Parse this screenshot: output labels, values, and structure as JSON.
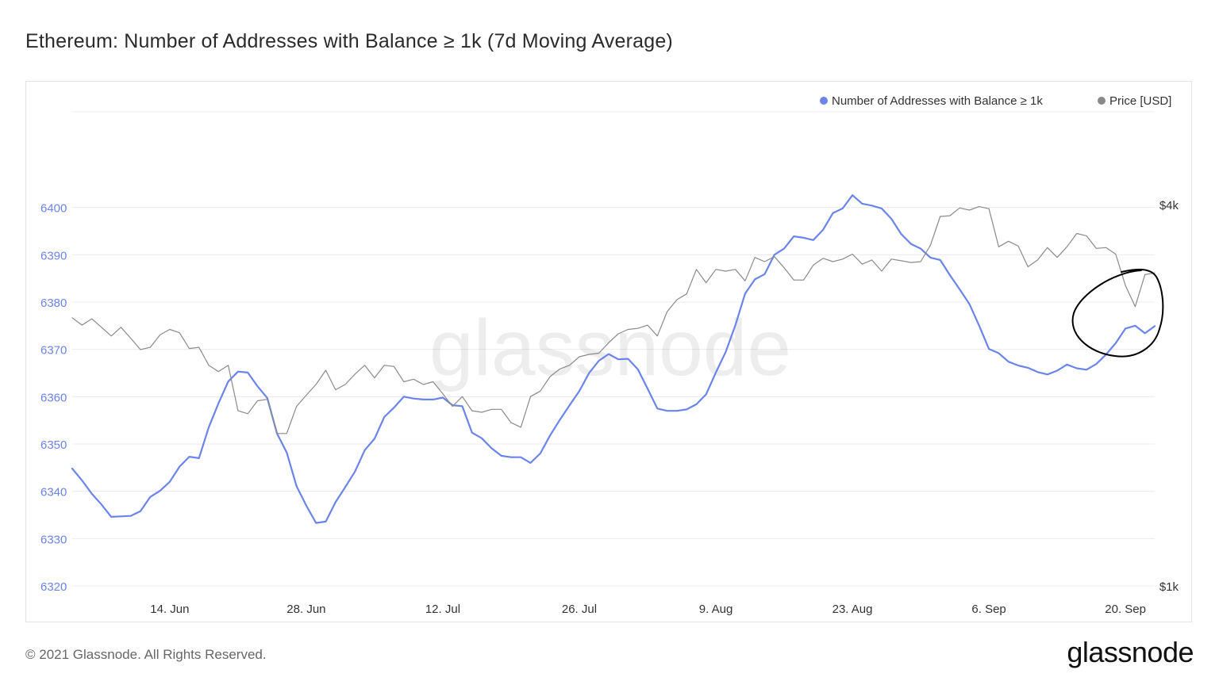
{
  "title": "Ethereum: Number of Addresses with Balance ≥ 1k (7d Moving Average)",
  "footer": "© 2021 Glassnode. All Rights Reserved.",
  "brand": "glassnode",
  "watermark": "glassnode",
  "colors": {
    "addresses": "#6b84ea",
    "price": "#8a8a8a",
    "grid": "#ececec",
    "axis_left": "#6b84ea",
    "axis_right": "#333333",
    "annotation": "#000000"
  },
  "chart_data": {
    "type": "line",
    "title": "Ethereum: Number of Addresses with Balance ≥ 1k (7d Moving Average)",
    "legend_position": "top-right",
    "grid": true,
    "x_ticks": [
      "14. Jun",
      "28. Jun",
      "12. Jul",
      "26. Jul",
      "9. Aug",
      "23. Aug",
      "6. Sep",
      "20. Sep"
    ],
    "x_range": [
      "2021-06-04",
      "2021-09-23"
    ],
    "y_left": {
      "label": "",
      "range": [
        6320,
        6410
      ],
      "ticks": [
        "6320",
        "6330",
        "6340",
        "6350",
        "6360",
        "6370",
        "6380",
        "6390",
        "6400"
      ]
    },
    "y_right": {
      "label": "",
      "scale": "log",
      "range_usd": [
        1000,
        4700
      ],
      "ticks": [
        {
          "label": "$1k",
          "value": 1000
        },
        {
          "label": "$4k",
          "value": 4000
        }
      ]
    },
    "start_date": "2021-06-04",
    "series": [
      {
        "name": "Number of Addresses with Balance ≥ 1k",
        "axis": "left",
        "values": [
          6344.8,
          6342.3,
          6339.5,
          6337.2,
          6334.6,
          6334.7,
          6334.8,
          6335.8,
          6338.8,
          6340.1,
          6342.0,
          6345.2,
          6347.3,
          6347.0,
          6353.5,
          6358.6,
          6363.2,
          6365.3,
          6365.1,
          6362.2,
          6359.7,
          6352.2,
          6348.2,
          6341.1,
          6337.0,
          6333.3,
          6333.6,
          6337.7,
          6340.9,
          6344.2,
          6348.7,
          6351.1,
          6355.7,
          6357.7,
          6360.0,
          6359.6,
          6359.4,
          6359.4,
          6359.8,
          6358.2,
          6358.0,
          6352.4,
          6351.2,
          6349.1,
          6347.5,
          6347.2,
          6347.2,
          6346.0,
          6348.0,
          6351.8,
          6355.1,
          6358.2,
          6361.2,
          6365.0,
          6367.6,
          6369.0,
          6367.9,
          6368.0,
          6365.8,
          6361.7,
          6357.5,
          6357.0,
          6357.0,
          6357.3,
          6358.4,
          6360.5,
          6365.1,
          6369.4,
          6375.1,
          6381.8,
          6384.8,
          6385.9,
          6390.0,
          6391.3,
          6393.9,
          6393.6,
          6393.1,
          6395.3,
          6398.8,
          6399.8,
          6402.6,
          6400.8,
          6400.4,
          6399.8,
          6397.6,
          6394.4,
          6392.3,
          6391.3,
          6389.4,
          6388.9,
          6385.7,
          6382.7,
          6379.6,
          6375.0,
          6370.1,
          6369.2,
          6367.4,
          6366.6,
          6366.1,
          6365.2,
          6364.7,
          6365.5,
          6366.8,
          6366.0,
          6365.7,
          6366.9,
          6368.9,
          6371.3,
          6374.4,
          6375.0,
          6373.4,
          6374.9
        ]
      },
      {
        "name": "Price [USD]",
        "axis": "right",
        "values": [
          2650,
          2580,
          2640,
          2560,
          2480,
          2560,
          2460,
          2360,
          2380,
          2490,
          2540,
          2510,
          2370,
          2380,
          2230,
          2180,
          2230,
          1890,
          1870,
          1960,
          1970,
          1740,
          1740,
          1920,
          2000,
          2080,
          2190,
          2040,
          2080,
          2160,
          2230,
          2130,
          2230,
          2220,
          2100,
          2120,
          2080,
          2100,
          2010,
          1920,
          1990,
          1890,
          1880,
          1900,
          1900,
          1810,
          1780,
          1990,
          2030,
          2140,
          2200,
          2230,
          2300,
          2320,
          2330,
          2420,
          2500,
          2540,
          2550,
          2580,
          2480,
          2710,
          2830,
          2890,
          3160,
          3010,
          3160,
          3140,
          3160,
          3030,
          3300,
          3250,
          3310,
          3180,
          3040,
          3040,
          3210,
          3290,
          3250,
          3280,
          3340,
          3220,
          3270,
          3140,
          3280,
          3260,
          3240,
          3250,
          3450,
          3830,
          3840,
          3950,
          3920,
          3970,
          3940,
          3430,
          3500,
          3440,
          3190,
          3270,
          3420,
          3300,
          3430,
          3600,
          3570,
          3410,
          3420,
          3340,
          2980,
          2760,
          3100,
          3120
        ]
      }
    ],
    "annotation": "hand-drawn circle around the latest data (mid to late September)"
  }
}
